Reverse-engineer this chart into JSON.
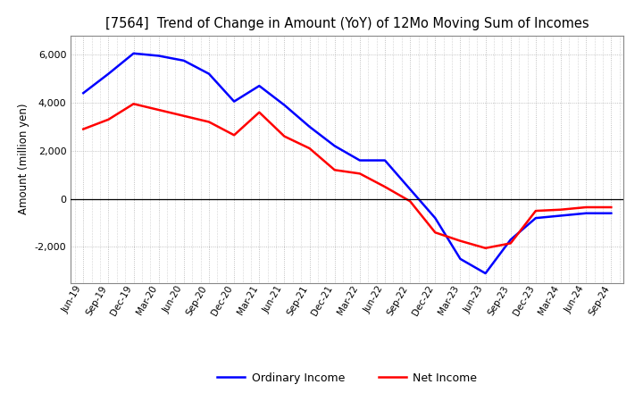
{
  "title": "[7564]  Trend of Change in Amount (YoY) of 12Mo Moving Sum of Incomes",
  "ylabel": "Amount (million yen)",
  "x_labels": [
    "Jun-19",
    "Sep-19",
    "Dec-19",
    "Mar-20",
    "Jun-20",
    "Sep-20",
    "Dec-20",
    "Mar-21",
    "Jun-21",
    "Sep-21",
    "Dec-21",
    "Mar-22",
    "Jun-22",
    "Sep-22",
    "Dec-22",
    "Mar-23",
    "Jun-23",
    "Sep-23",
    "Dec-23",
    "Mar-24",
    "Jun-24",
    "Sep-24"
  ],
  "ordinary_income": [
    4400,
    5200,
    6050,
    5950,
    5750,
    5200,
    4050,
    4700,
    3900,
    3000,
    2200,
    1600,
    1600,
    400,
    -800,
    -2500,
    -3100,
    -1700,
    -800,
    -700,
    -600,
    -600
  ],
  "net_income": [
    2900,
    3300,
    3950,
    3700,
    3450,
    3200,
    2650,
    3600,
    2600,
    2100,
    1200,
    1050,
    500,
    -100,
    -1400,
    -1750,
    -2050,
    -1850,
    -500,
    -450,
    -350,
    -350
  ],
  "ordinary_color": "#0000ff",
  "net_color": "#ff0000",
  "background_color": "#ffffff",
  "grid_color": "#b0b0b0",
  "ylim": [
    -3500,
    6800
  ],
  "yticks": [
    -2000,
    0,
    2000,
    4000,
    6000
  ],
  "legend_labels": [
    "Ordinary Income",
    "Net Income"
  ]
}
